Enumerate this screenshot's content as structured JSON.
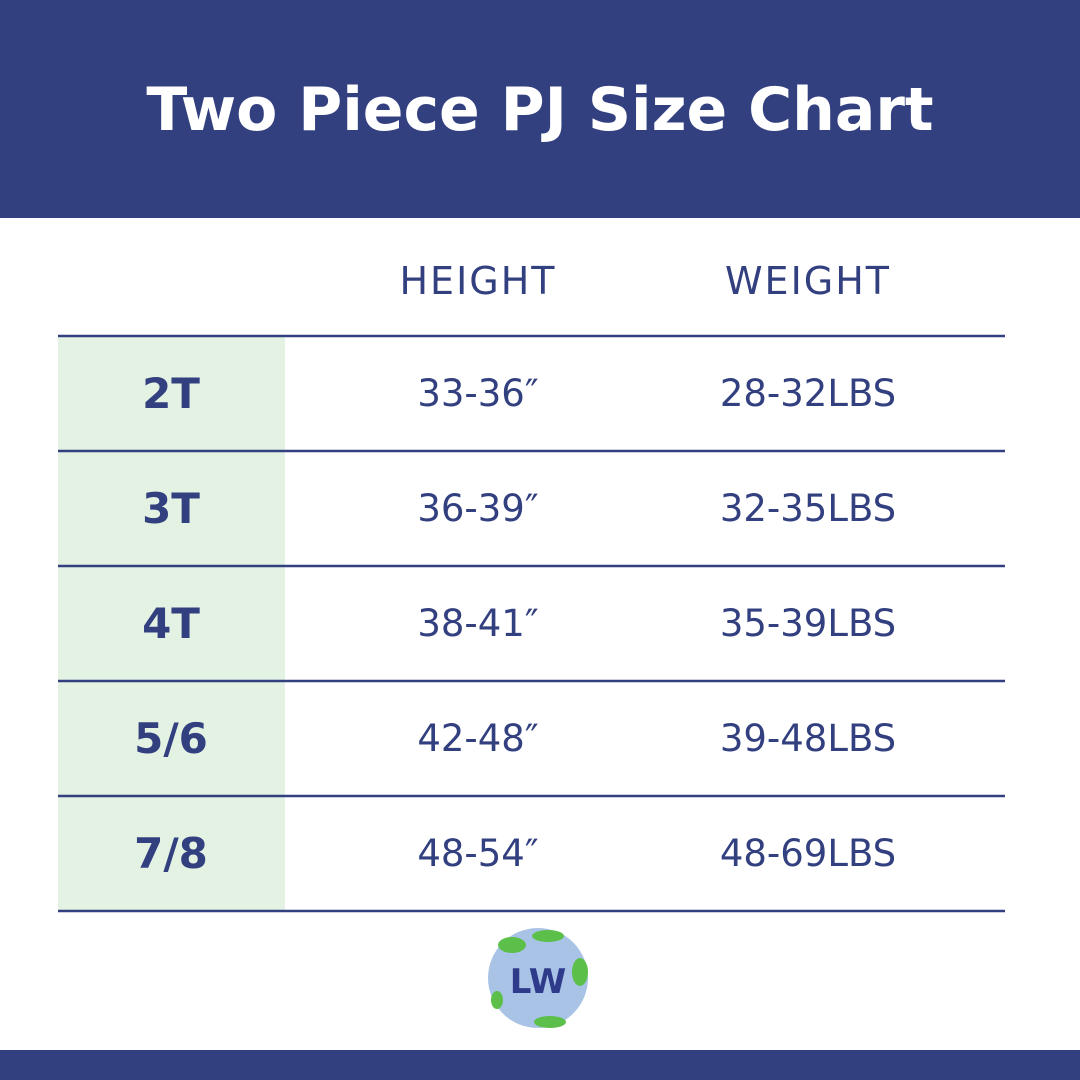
{
  "header": {
    "title": "Two Piece PJ Size Chart"
  },
  "table": {
    "columns": [
      "HEIGHT",
      "WEIGHT"
    ],
    "rows": [
      [
        "2T",
        "33-36″",
        "28-32LBS"
      ],
      [
        "3T",
        "36-39″",
        "32-35LBS"
      ],
      [
        "4T",
        "38-41″",
        "35-39LBS"
      ],
      [
        "5/6",
        "42-48″",
        "39-48LBS"
      ],
      [
        "7/8",
        "48-54″",
        "48-69LBS"
      ]
    ]
  },
  "logo": {
    "text": "LW"
  }
}
